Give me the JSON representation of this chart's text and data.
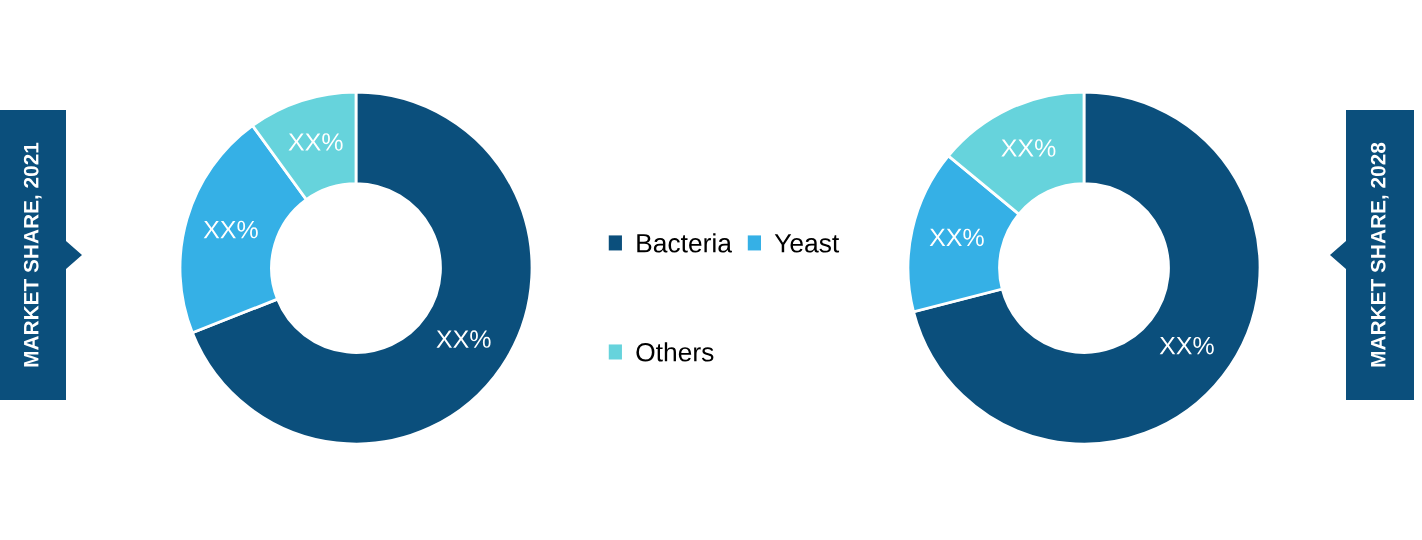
{
  "chart_data": [
    {
      "type": "donut",
      "title": "MARKET SHARE, 2021",
      "categories": [
        "Bacteria",
        "Yeast",
        "Others"
      ],
      "values": [
        69,
        21,
        10
      ],
      "colors": [
        "#0b4f7c",
        "#35b0e6",
        "#66d3dc"
      ],
      "value_labels": [
        "XX%",
        "XX%",
        "XX%"
      ],
      "legend": "right"
    },
    {
      "type": "donut",
      "title": "MARKET SHARE, 2028",
      "categories": [
        null,
        null,
        null
      ],
      "values": [
        71,
        15,
        14
      ],
      "colors": [
        "#0b4f7c",
        "#35b0e6",
        "#66d3dc"
      ],
      "value_labels": [
        "XX%",
        "XX%",
        "XX%"
      ]
    }
  ]
}
